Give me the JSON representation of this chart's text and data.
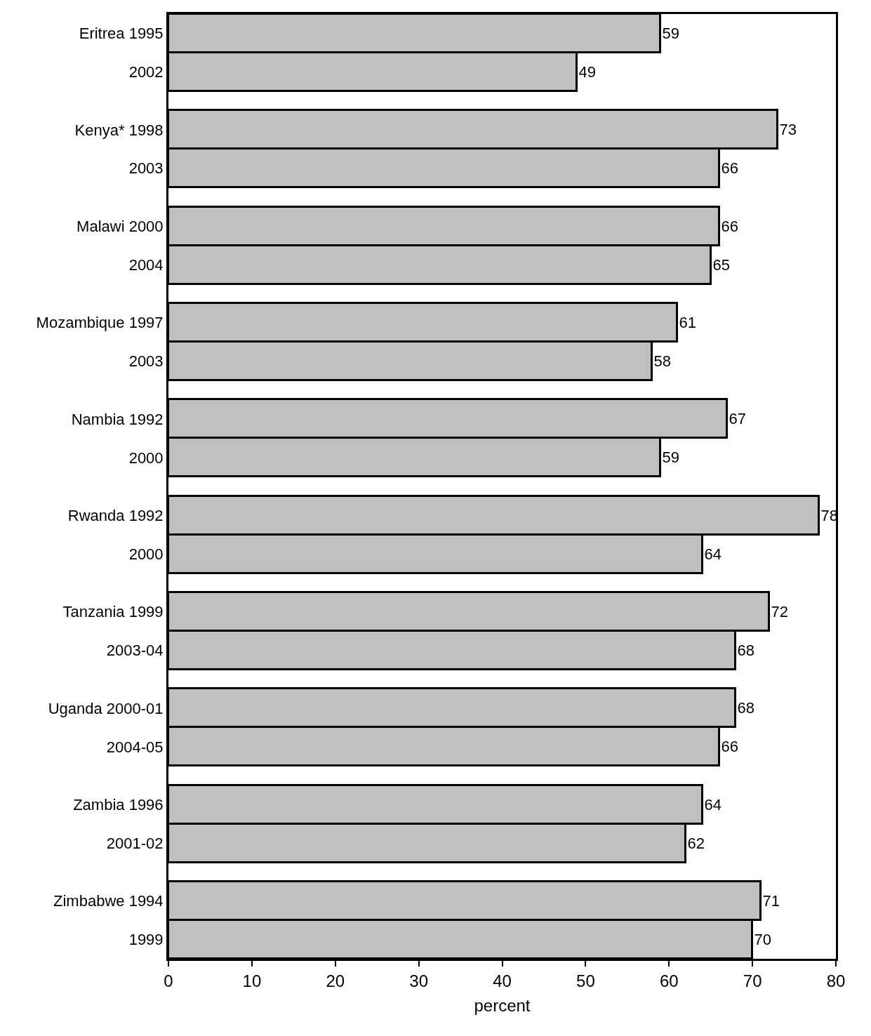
{
  "chart_data": {
    "type": "bar",
    "orientation": "horizontal",
    "xlabel": "percent",
    "categories": [
      "Eritrea 1995",
      "2002",
      "Kenya* 1998",
      "2003",
      "Malawi 2000",
      "2004",
      "Mozambique 1997",
      "2003",
      "Nambia 1992",
      "2000",
      "Rwanda 1992",
      "2000",
      "Tanzania 1999",
      "2003-04",
      "Uganda 2000-01",
      "2004-05",
      "Zambia 1996",
      "2001-02",
      "Zimbabwe 1994",
      "1999"
    ],
    "values": [
      59,
      49,
      73,
      66,
      66,
      65,
      61,
      58,
      67,
      59,
      78,
      64,
      72,
      68,
      68,
      66,
      64,
      62,
      71,
      70
    ],
    "color": "#c0c0c0",
    "data_labels": true,
    "grid": false,
    "legend": false,
    "xlim": [
      0,
      80
    ],
    "xticks": [
      0,
      10,
      20,
      30,
      40,
      50,
      60,
      70,
      80
    ]
  }
}
